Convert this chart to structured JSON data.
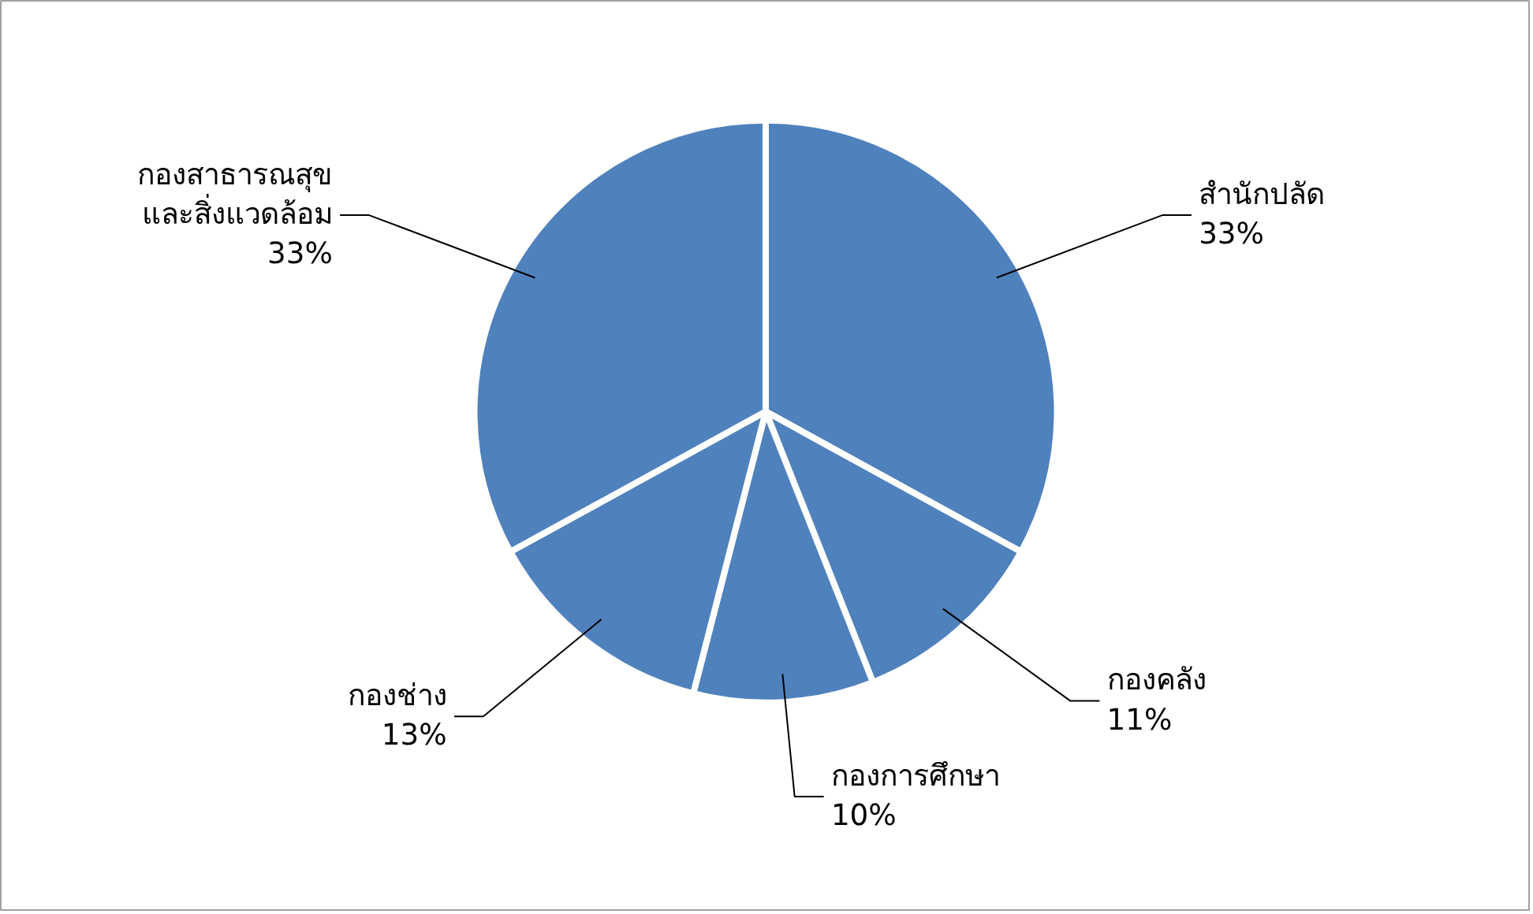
{
  "chart_data": {
    "type": "pie",
    "categories": [
      "สำนักปลัด",
      "กองคลัง",
      "กองการศึกษา",
      "กองช่าง",
      "กองสาธารณสุข\nและสิ่งแวดล้อม"
    ],
    "values": [
      33,
      11,
      10,
      13,
      33
    ],
    "value_labels": [
      "33%",
      "11%",
      "10%",
      "13%",
      "33%"
    ],
    "colors": [
      "#4f81bd",
      "#4f81bd",
      "#4f81bd",
      "#4f81bd",
      "#4f81bd"
    ],
    "legend": false
  }
}
